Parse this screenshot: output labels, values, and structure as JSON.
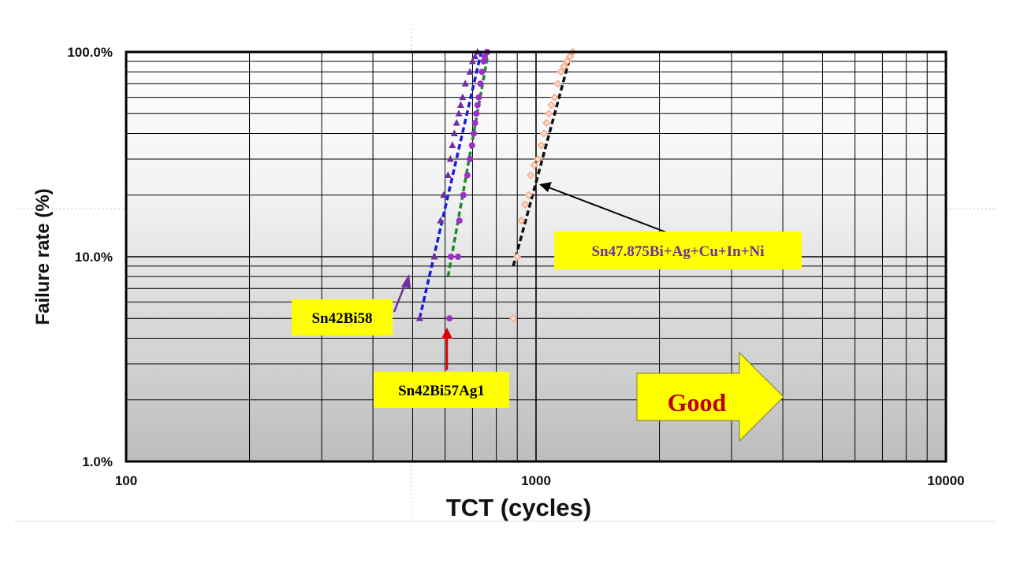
{
  "chart_data": {
    "type": "scatter",
    "xscale": "log",
    "yscale": "log",
    "xlim": [
      100,
      10000
    ],
    "ylim": [
      1,
      100
    ],
    "x_ticks": [
      "100",
      "1000",
      "10000"
    ],
    "y_ticks": [
      "1.0%",
      "10.0%",
      "100.0%"
    ],
    "xlabel": "TCT (cycles)",
    "ylabel": "Failure rate (%)",
    "grid": true,
    "series": [
      {
        "name": "Sn42Bi58",
        "color": "#7030a0",
        "marker": "triangle",
        "line_color": "#1a1adc",
        "points": [
          [
            520,
            5
          ],
          [
            565,
            10
          ],
          [
            585,
            15
          ],
          [
            595,
            20
          ],
          [
            610,
            25
          ],
          [
            618,
            30
          ],
          [
            625,
            35
          ],
          [
            632,
            40
          ],
          [
            640,
            45
          ],
          [
            648,
            50
          ],
          [
            655,
            55
          ],
          [
            662,
            60
          ],
          [
            672,
            70
          ],
          [
            690,
            80
          ],
          [
            700,
            90
          ],
          [
            710,
            95
          ],
          [
            720,
            100
          ]
        ],
        "fit": [
          [
            520,
            5
          ],
          [
            735,
            100
          ]
        ]
      },
      {
        "name": "Sn42Bi57Ag1",
        "color": "#9b30c8",
        "marker": "circle",
        "line_color": "#1f8a2a",
        "points": [
          [
            615,
            5
          ],
          [
            620,
            10
          ],
          [
            645,
            10
          ],
          [
            650,
            15
          ],
          [
            665,
            20
          ],
          [
            680,
            25
          ],
          [
            690,
            30
          ],
          [
            698,
            35
          ],
          [
            705,
            40
          ],
          [
            710,
            45
          ],
          [
            715,
            50
          ],
          [
            720,
            55
          ],
          [
            725,
            60
          ],
          [
            732,
            70
          ],
          [
            738,
            80
          ],
          [
            745,
            90
          ],
          [
            750,
            95
          ],
          [
            760,
            100
          ]
        ],
        "fit": [
          [
            610,
            8
          ],
          [
            765,
            100
          ]
        ]
      },
      {
        "name": "Sn47.875Bi+Ag+Cu+In+Ni",
        "color": "#f4a582",
        "marker": "diamond",
        "line_color": "#111111",
        "points": [
          [
            880,
            5
          ],
          [
            900,
            10
          ],
          [
            920,
            15
          ],
          [
            940,
            18
          ],
          [
            960,
            20
          ],
          [
            970,
            25
          ],
          [
            990,
            28
          ],
          [
            1010,
            30
          ],
          [
            1030,
            35
          ],
          [
            1045,
            40
          ],
          [
            1060,
            45
          ],
          [
            1075,
            50
          ],
          [
            1090,
            55
          ],
          [
            1110,
            60
          ],
          [
            1130,
            70
          ],
          [
            1150,
            80
          ],
          [
            1170,
            85
          ],
          [
            1190,
            90
          ],
          [
            1210,
            95
          ],
          [
            1230,
            100
          ]
        ],
        "fit": [
          [
            880,
            9
          ],
          [
            1220,
            100
          ]
        ]
      }
    ],
    "annotations": [
      {
        "text": "Sn42Bi58",
        "arrow_color": "#7030a0"
      },
      {
        "text": "Sn42Bi57Ag1",
        "arrow_color": "#e00000"
      },
      {
        "text": "Sn47.875Bi+Ag+Cu+In+Ni",
        "arrow_color": "#000000",
        "text_color": "#7030a0"
      },
      {
        "text": "Good",
        "text_color": "#c00000",
        "fill": "#ffff00"
      }
    ]
  }
}
